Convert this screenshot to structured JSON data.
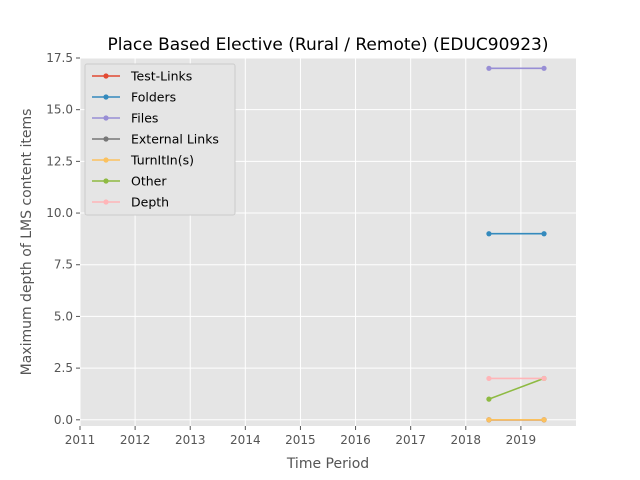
{
  "chart_data": {
    "type": "line",
    "title": "Place Based Elective (Rural / Remote) (EDUC90923)",
    "xlabel": "Time Period",
    "ylabel": "Maximum depth of LMS content items",
    "xlim": [
      2011,
      2020
    ],
    "ylim": [
      -0.3,
      17.5
    ],
    "xticks": [
      "2011",
      "2012",
      "2013",
      "2014",
      "2015",
      "2016",
      "2017",
      "2018",
      "2019"
    ],
    "yticks": [
      "0.0",
      "2.5",
      "5.0",
      "7.5",
      "10.0",
      "12.5",
      "15.0",
      "17.5"
    ],
    "grid": true,
    "legend_position": "upper-left",
    "x": [
      2018.42,
      2019.42
    ],
    "series": [
      {
        "name": "Test-Links",
        "color": "#E24A33",
        "values": [
          0,
          0
        ]
      },
      {
        "name": "Folders",
        "color": "#348ABD",
        "values": [
          9,
          9
        ]
      },
      {
        "name": "Files",
        "color": "#988ED5",
        "values": [
          17,
          17
        ]
      },
      {
        "name": "External Links",
        "color": "#777777",
        "values": [
          0,
          0
        ]
      },
      {
        "name": "TurnItIn(s)",
        "color": "#FBC15E",
        "values": [
          0,
          0
        ]
      },
      {
        "name": "Other",
        "color": "#8EBA42",
        "values": [
          1,
          2
        ]
      },
      {
        "name": "Depth",
        "color": "#FFB5B8",
        "values": [
          2,
          2
        ]
      }
    ]
  }
}
